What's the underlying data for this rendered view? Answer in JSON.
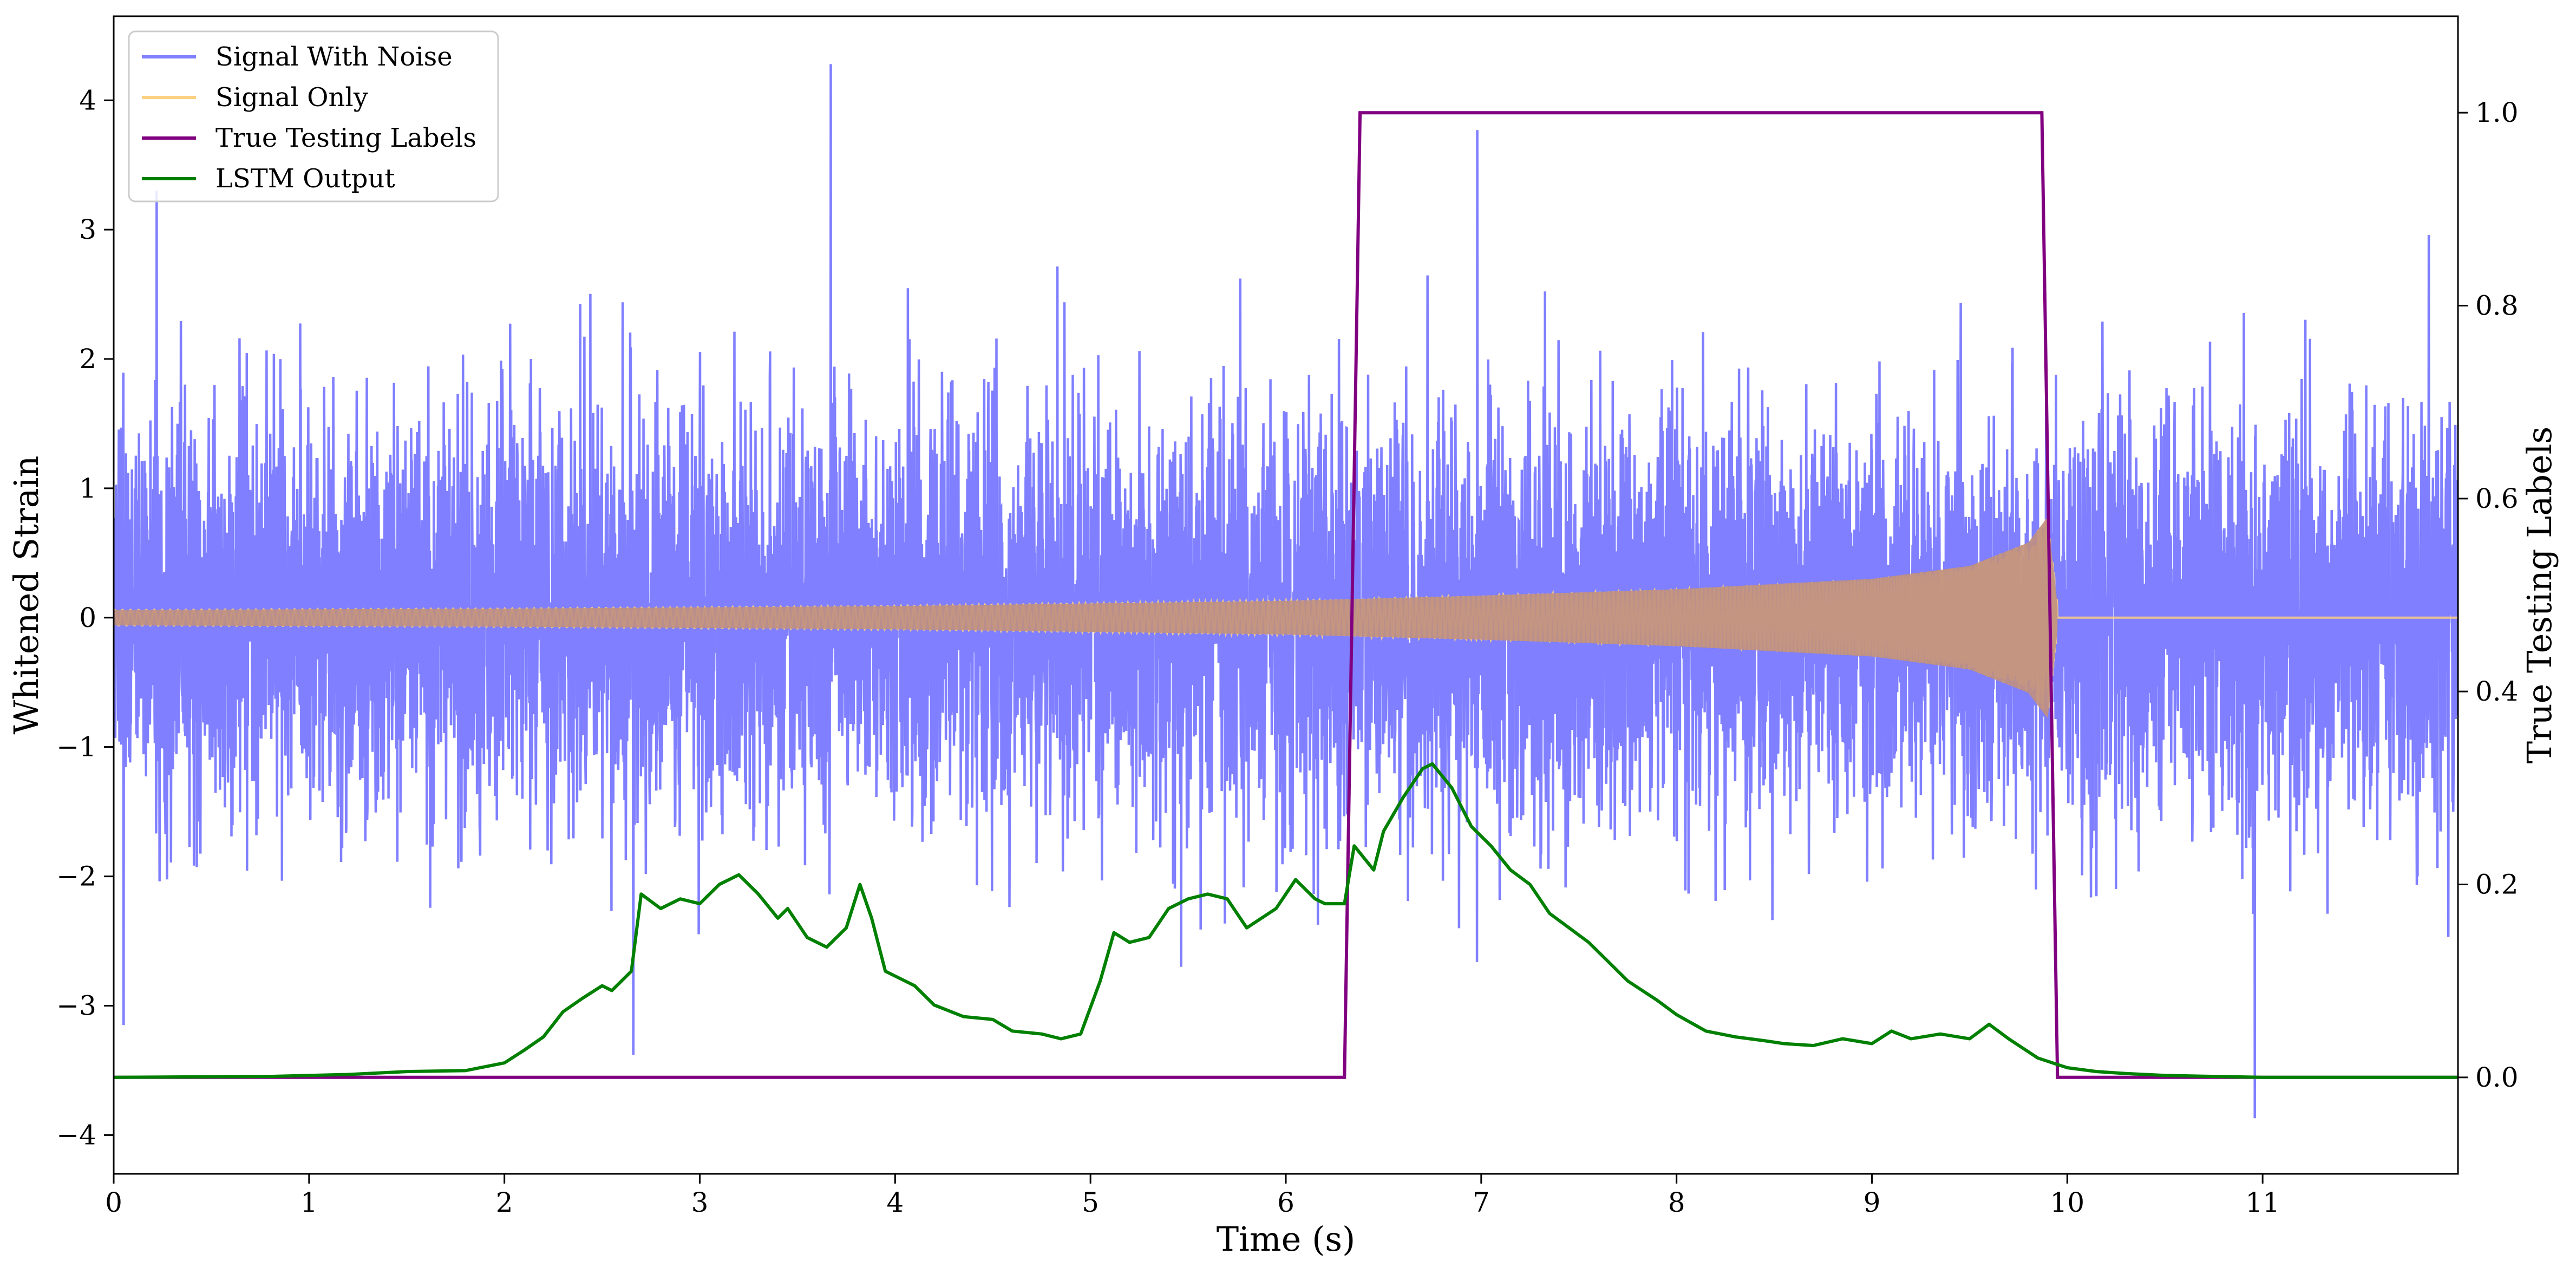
{
  "chart_data": {
    "type": "line",
    "title": "",
    "xlabel": "Time (s)",
    "ylabel": "Whitened Strain",
    "ylabel_right": "True Testing Labels",
    "xlim": [
      0,
      12
    ],
    "ylim": [
      -4.3,
      4.65
    ],
    "ylim_right": [
      -0.1,
      1.1
    ],
    "x_ticks": [
      0,
      1,
      2,
      3,
      4,
      5,
      6,
      7,
      8,
      9,
      10,
      11
    ],
    "x_tick_labels": [
      "0",
      "1",
      "2",
      "3",
      "4",
      "5",
      "6",
      "7",
      "8",
      "9",
      "10",
      "11"
    ],
    "y_ticks": [
      -4,
      -3,
      -2,
      -1,
      0,
      1,
      2,
      3,
      4
    ],
    "y_tick_labels": [
      "−4",
      "−3",
      "−2",
      "−1",
      "0",
      "1",
      "2",
      "3",
      "4"
    ],
    "y_ticks_right": [
      0.0,
      0.2,
      0.4,
      0.6,
      0.8,
      1.0
    ],
    "y_tick_labels_right": [
      "0.0",
      "0.2",
      "0.4",
      "0.6",
      "0.8",
      "1.0"
    ],
    "grid": false,
    "legend_position": "top-left",
    "series": [
      {
        "name": "Signal With Noise",
        "axis": "left",
        "color": "#7f7fff",
        "style": "noise",
        "sigma": 0.78,
        "approx_range": [
          -3.9,
          4.3
        ],
        "peaks": [
          {
            "x": 3.67,
            "y": 4.28
          },
          {
            "x": 10.96,
            "y": -3.87
          },
          {
            "x": 6.98,
            "y": 3.77
          },
          {
            "x": 0.22,
            "y": 3.3
          },
          {
            "x": 0.05,
            "y": -3.15
          },
          {
            "x": 2.66,
            "y": -3.38
          }
        ]
      },
      {
        "name": "Signal Only",
        "axis": "left",
        "color": "#ffd080",
        "style": "chirp",
        "envelope": [
          [
            0,
            0.06
          ],
          [
            2,
            0.07
          ],
          [
            4,
            0.09
          ],
          [
            6,
            0.13
          ],
          [
            7,
            0.17
          ],
          [
            8,
            0.22
          ],
          [
            9,
            0.3
          ],
          [
            9.5,
            0.4
          ],
          [
            9.8,
            0.58
          ],
          [
            9.9,
            0.78
          ],
          [
            9.95,
            0.1
          ],
          [
            10.0,
            0.0
          ],
          [
            12,
            0.0
          ]
        ]
      },
      {
        "name": "True Testing Labels",
        "axis": "right",
        "color": "#800080",
        "x": [
          0,
          6.3,
          6.38,
          9.87,
          9.95,
          12
        ],
        "y": [
          0,
          0,
          1,
          1,
          0,
          0
        ]
      },
      {
        "name": "LSTM Output",
        "axis": "right",
        "color": "#008000",
        "x": [
          0,
          0.8,
          1.2,
          1.5,
          1.8,
          2.0,
          2.1,
          2.2,
          2.3,
          2.4,
          2.5,
          2.55,
          2.65,
          2.7,
          2.8,
          2.9,
          3.0,
          3.1,
          3.2,
          3.3,
          3.4,
          3.45,
          3.55,
          3.65,
          3.75,
          3.82,
          3.88,
          3.95,
          4.1,
          4.2,
          4.35,
          4.5,
          4.6,
          4.75,
          4.85,
          4.95,
          5.05,
          5.12,
          5.2,
          5.3,
          5.4,
          5.5,
          5.6,
          5.7,
          5.8,
          5.95,
          6.05,
          6.15,
          6.2,
          6.3,
          6.35,
          6.45,
          6.5,
          6.6,
          6.7,
          6.75,
          6.85,
          6.95,
          7.05,
          7.15,
          7.25,
          7.35,
          7.45,
          7.55,
          7.65,
          7.75,
          7.9,
          8.0,
          8.15,
          8.3,
          8.45,
          8.55,
          8.7,
          8.85,
          9.0,
          9.1,
          9.2,
          9.35,
          9.5,
          9.6,
          9.7,
          9.85,
          10.0,
          10.15,
          10.3,
          10.5,
          11.0,
          12.0
        ],
        "y": [
          0.0,
          0.001,
          0.003,
          0.006,
          0.007,
          0.015,
          0.028,
          0.042,
          0.068,
          0.082,
          0.095,
          0.09,
          0.11,
          0.19,
          0.175,
          0.185,
          0.18,
          0.2,
          0.21,
          0.19,
          0.165,
          0.175,
          0.145,
          0.135,
          0.155,
          0.2,
          0.165,
          0.11,
          0.095,
          0.075,
          0.063,
          0.06,
          0.048,
          0.045,
          0.04,
          0.045,
          0.1,
          0.15,
          0.14,
          0.145,
          0.175,
          0.185,
          0.19,
          0.185,
          0.155,
          0.175,
          0.205,
          0.185,
          0.18,
          0.18,
          0.24,
          0.215,
          0.255,
          0.29,
          0.32,
          0.325,
          0.3,
          0.26,
          0.24,
          0.215,
          0.2,
          0.17,
          0.155,
          0.14,
          0.12,
          0.1,
          0.08,
          0.065,
          0.048,
          0.042,
          0.038,
          0.035,
          0.033,
          0.04,
          0.035,
          0.048,
          0.04,
          0.045,
          0.04,
          0.055,
          0.04,
          0.02,
          0.01,
          0.006,
          0.004,
          0.002,
          0.0,
          0.0
        ]
      }
    ]
  }
}
